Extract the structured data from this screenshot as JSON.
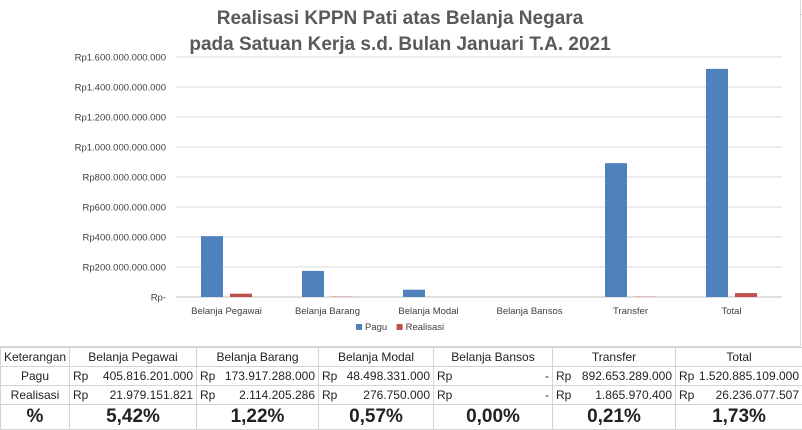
{
  "chart_data": {
    "type": "bar",
    "title_line1": "Realisasi KPPN Pati atas Belanja Negara",
    "title_line2": "pada Satuan Kerja s.d. Bulan Januari T.A. 2021",
    "categories": [
      "Belanja Pegawai",
      "Belanja Barang",
      "Belanja Modal",
      "Belanja Bansos",
      "Transfer",
      "Total"
    ],
    "series": [
      {
        "name": "Pagu",
        "color": "#4f81bd",
        "values": [
          405816201000,
          173917288000,
          48498331000,
          0,
          892653289000,
          1520885109000
        ]
      },
      {
        "name": "Realisasi",
        "color": "#c0504d",
        "values": [
          21979151821,
          2114205286,
          276750000,
          0,
          1865970400,
          26236077507
        ]
      }
    ],
    "ylim": [
      0,
      1600000000000
    ],
    "yticks": [
      0,
      200000000000,
      400000000000,
      600000000000,
      800000000000,
      1000000000000,
      1200000000000,
      1400000000000,
      1600000000000
    ],
    "ytick_labels": [
      "Rp-",
      "Rp200.000.000.000",
      "Rp400.000.000.000",
      "Rp600.000.000.000",
      "Rp800.000.000.000",
      "Rp1.000.000.000.000",
      "Rp1.200.000.000.000",
      "Rp1.400.000.000.000",
      "Rp1.600.000.000.000"
    ],
    "grid": true,
    "legend_position": "bottom"
  },
  "table": {
    "header": [
      "Keterangan",
      "Belanja Pegawai",
      "Belanja Barang",
      "Belanja Modal",
      "Belanja Bansos",
      "Transfer",
      "Total"
    ],
    "pagu_label": "Pagu",
    "realisasi_label": "Realisasi",
    "pct_label": "%",
    "pagu": [
      {
        "cur": "Rp",
        "num": "405.816.201.000"
      },
      {
        "cur": "Rp",
        "num": "173.917.288.000"
      },
      {
        "cur": "Rp",
        "num": "48.498.331.000"
      },
      {
        "cur": "Rp",
        "num": "-"
      },
      {
        "cur": "Rp",
        "num": "892.653.289.000"
      },
      {
        "cur": "Rp",
        "num": "1.520.885.109.000"
      }
    ],
    "realisasi": [
      {
        "cur": "Rp",
        "num": "21.979.151.821"
      },
      {
        "cur": "Rp",
        "num": "2.114.205.286"
      },
      {
        "cur": "Rp",
        "num": "276.750.000"
      },
      {
        "cur": "Rp",
        "num": "-"
      },
      {
        "cur": "Rp",
        "num": "1.865.970.400"
      },
      {
        "cur": "Rp",
        "num": "26.236.077.507"
      }
    ],
    "pct": [
      "5,42%",
      "1,22%",
      "0,57%",
      "0,00%",
      "0,21%",
      "1,73%"
    ]
  }
}
